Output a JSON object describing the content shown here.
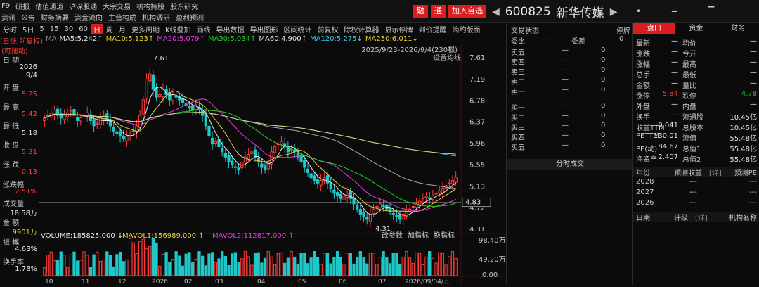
{
  "menu": {
    "row1": [
      "F9",
      "研报",
      "估值通道",
      "沪深股通",
      "大宗交易",
      "机构持股",
      "股东研究"
    ],
    "row2": [
      "资讯",
      "公告",
      "财务摘要",
      "资金流向",
      "主营构成",
      "机构调研",
      "盈利预测"
    ]
  },
  "badges": [
    "融",
    "通",
    "加入自选"
  ],
  "stock": {
    "code": "600825",
    "name": "新华传媒"
  },
  "toolbar": [
    "分时",
    "5日",
    "5",
    "15",
    "30",
    "60",
    "日",
    "周",
    "月",
    "更多周期",
    "K线叠加",
    "画线",
    "导出数据",
    "导出图形",
    "区间统计",
    "前复权",
    "除权计算器",
    "显示停牌",
    "到价提醒",
    "简约版面"
  ],
  "toolbar_active": "日",
  "ma": {
    "label": "MA",
    "ma5": "MA5:5.242↑",
    "ma10": "MA10:5.123↑",
    "ma20": "MA20:5.079↑",
    "ma30": "MA30:5.034↑",
    "ma60": "MA60:4.900↑",
    "ma120": "MA120:5.275↓",
    "ma250": "MA250:6.011↓"
  },
  "chart_meta": {
    "adjust_tag": "(日线,前复权)",
    "range": "2025/9/23-2026/9/4(230根)",
    "settings": "设置均线",
    "max_label": "7.61",
    "min_label": "4.31",
    "last_label": "4.83",
    "draggable": "(可拖动)"
  },
  "left_info": {
    "date_label": "日  期",
    "date_year": "2026",
    "date_md": "9/4",
    "open_label": "开  盘",
    "open": "5.25",
    "high_label": "最  高",
    "high": "5.42",
    "low_label": "最  低",
    "low": "5.18",
    "close_label": "收  盘",
    "close": "5.31",
    "chg_label": "涨  跌",
    "chg": "0.13",
    "pct_label": "涨跌幅",
    "pct": "2.51%",
    "vol_label": "成交量",
    "vol": "18.58万",
    "amt_label": "金  额",
    "amt": "9901万",
    "amp_label": "振  幅",
    "amp": "4.63%",
    "turn_label": "换手率",
    "turn": "1.78%"
  },
  "volume": {
    "vol": "VOLUME:185825.000 ↓",
    "mavol1": "MAVOL1:156989.000 ↑",
    "mavol2": "MAVOL2:112817.000 ↑",
    "btn1": "改参数",
    "btn2": "加指标",
    "btn3": "换指标",
    "y_top": "98.40万",
    "y_mid": "49.20万",
    "y_bot": "0.00"
  },
  "price_axis": [
    "7.61",
    "7.19",
    "6.78",
    "6.37",
    "5.96",
    "5.55",
    "5.13",
    "4.72",
    "4.31"
  ],
  "date_axis": [
    "10",
    "11",
    "12",
    "2026",
    "02",
    "03",
    "04",
    "05",
    "06",
    "07",
    "2026/09/04/五"
  ],
  "orderbook": {
    "title": "交易状态",
    "status": "停牌",
    "ratio": "委比",
    "diff": "委差",
    "ratio_val": "—",
    "diff_val": "0",
    "sells": [
      {
        "label": "卖五",
        "p": "—",
        "v": "0"
      },
      {
        "label": "卖四",
        "p": "—",
        "v": "0"
      },
      {
        "label": "卖三",
        "p": "—",
        "v": "0"
      },
      {
        "label": "卖二",
        "p": "—",
        "v": "0"
      },
      {
        "label": "卖一",
        "p": "—",
        "v": "0"
      }
    ],
    "buys": [
      {
        "label": "买一",
        "p": "—",
        "v": "0"
      },
      {
        "label": "买二",
        "p": "—",
        "v": "0"
      },
      {
        "label": "买三",
        "p": "—",
        "v": "0"
      },
      {
        "label": "买四",
        "p": "—",
        "v": "0"
      },
      {
        "label": "买五",
        "p": "—",
        "v": "0"
      }
    ],
    "ticks_title": "分时成交"
  },
  "quote": {
    "tabs": [
      "盘口",
      "资金",
      "财务"
    ],
    "rows": [
      [
        "最新",
        "—",
        "均价",
        "—"
      ],
      [
        "涨跌",
        "—",
        "今开",
        "—"
      ],
      [
        "涨幅",
        "—",
        "最高",
        "—"
      ],
      [
        "总手",
        "—",
        "最低",
        "—"
      ],
      [
        "金额",
        "—",
        "量比",
        "—"
      ],
      [
        "涨停",
        "5.84",
        "跌停",
        "4.78"
      ],
      [
        "外盘",
        "—",
        "内盘",
        "—"
      ],
      [
        "换手",
        "—",
        "流通股",
        "10.45亿"
      ],
      [
        "收益TTM",
        "0.041",
        "总股本",
        "10.45亿"
      ],
      [
        "PETTM",
        "130.01",
        "流值",
        "55.48亿"
      ],
      [
        "PE(动)",
        "84.67",
        "总值1",
        "55.48亿"
      ],
      [
        "净资产",
        "2.407",
        "总值2",
        "55.48亿"
      ]
    ],
    "forecast_header": [
      "年份",
      "预测收益",
      "[详]",
      "预测PE"
    ],
    "forecast": [
      [
        "2028",
        "---",
        "---"
      ],
      [
        "2027",
        "---",
        "---"
      ],
      [
        "2026",
        "---",
        "---"
      ]
    ],
    "rating_header": [
      "日期",
      "评级",
      "[详]",
      "机构名称"
    ]
  },
  "chart_data": {
    "type": "candlestick",
    "title": "600825 新华传媒 日K",
    "ylim": [
      4.31,
      7.61
    ],
    "close_series": [
      6.45,
      6.5,
      6.55,
      6.6,
      6.5,
      6.45,
      6.5,
      6.55,
      6.6,
      6.5,
      6.4,
      6.45,
      6.5,
      6.55,
      6.4,
      6.3,
      6.35,
      6.45,
      6.5,
      6.4,
      6.3,
      6.2,
      6.15,
      6.1,
      6.05,
      6.1,
      6.15,
      6.2,
      6.3,
      6.5,
      6.8,
      7.2,
      7.3,
      7.0,
      6.85,
      6.9,
      7.0,
      6.9,
      6.8,
      6.9,
      6.85,
      6.8,
      6.75,
      6.7,
      6.65,
      6.6,
      6.7,
      6.6,
      6.5,
      6.3,
      6.1,
      5.95,
      6.0,
      5.9,
      5.8,
      5.7,
      5.6,
      5.55,
      5.5,
      5.45,
      5.6,
      5.7,
      5.75,
      5.8,
      5.7,
      5.6,
      5.5,
      5.45,
      5.6,
      5.8,
      5.9,
      5.95,
      6.0,
      5.9,
      5.8,
      5.85,
      5.8,
      5.7,
      5.6,
      5.5,
      5.4,
      5.3,
      5.25,
      5.2,
      5.25,
      5.3,
      5.2,
      5.1,
      5.0,
      4.95,
      4.9,
      4.95,
      5.0,
      4.9,
      4.8,
      4.7,
      4.6,
      4.55,
      4.5,
      4.6,
      4.7,
      4.75,
      4.8,
      4.75,
      4.7,
      4.65,
      4.6,
      4.55,
      4.5,
      4.6,
      4.65,
      4.7,
      4.75,
      4.8,
      4.85,
      4.9,
      4.95,
      4.9,
      4.95,
      5.0,
      5.05,
      5.1,
      5.15,
      5.2,
      5.25,
      5.31
    ]
  }
}
